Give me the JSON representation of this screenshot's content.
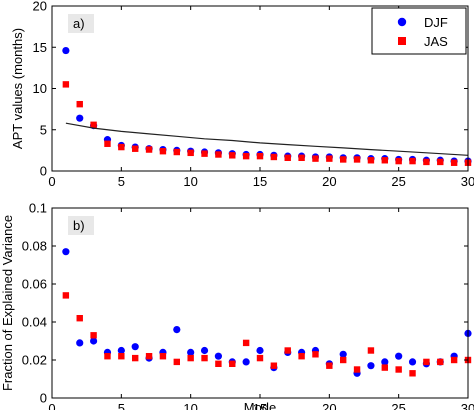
{
  "chart_data": [
    {
      "type": "scatter",
      "panel_label": "a)",
      "ylabel": "APT values (months)",
      "xlabel": "",
      "xlim": [
        0,
        30
      ],
      "ylim": [
        0,
        20
      ],
      "xticks": [
        "0",
        "5",
        "10",
        "15",
        "20",
        "25",
        "30"
      ],
      "yticks": [
        "0",
        "5",
        "10",
        "15",
        "20"
      ],
      "legend": {
        "placement": "top-right",
        "entries": [
          "DJF",
          "JAS"
        ]
      },
      "series": [
        {
          "name": "DJF",
          "marker": "circle",
          "color": "#0000ff",
          "x": [
            1,
            2,
            3,
            4,
            5,
            6,
            7,
            8,
            9,
            10,
            11,
            12,
            13,
            14,
            15,
            16,
            17,
            18,
            19,
            20,
            21,
            22,
            23,
            24,
            25,
            26,
            27,
            28,
            29,
            30
          ],
          "values": [
            14.6,
            6.4,
            5.5,
            3.8,
            3.1,
            2.9,
            2.7,
            2.6,
            2.5,
            2.4,
            2.3,
            2.2,
            2.1,
            2.0,
            2.0,
            1.9,
            1.8,
            1.8,
            1.7,
            1.7,
            1.6,
            1.6,
            1.5,
            1.5,
            1.4,
            1.4,
            1.3,
            1.3,
            1.2,
            1.2
          ]
        },
        {
          "name": "JAS",
          "marker": "square",
          "color": "#ff0000",
          "x": [
            1,
            2,
            3,
            4,
            5,
            6,
            7,
            8,
            9,
            10,
            11,
            12,
            13,
            14,
            15,
            16,
            17,
            18,
            19,
            20,
            21,
            22,
            23,
            24,
            25,
            26,
            27,
            28,
            29,
            30
          ],
          "values": [
            10.5,
            8.1,
            5.6,
            3.3,
            2.9,
            2.7,
            2.6,
            2.4,
            2.3,
            2.2,
            2.1,
            2.0,
            1.9,
            1.8,
            1.8,
            1.7,
            1.6,
            1.6,
            1.5,
            1.5,
            1.4,
            1.4,
            1.3,
            1.3,
            1.2,
            1.2,
            1.1,
            1.1,
            1.0,
            1.0
          ]
        },
        {
          "name": "",
          "marker": "line",
          "color": "#222222",
          "x": [
            1,
            3,
            5,
            7,
            9,
            11,
            13,
            15,
            17,
            19,
            21,
            23,
            25,
            27,
            30
          ],
          "values": [
            5.8,
            5.2,
            4.8,
            4.5,
            4.2,
            3.9,
            3.7,
            3.4,
            3.2,
            3.0,
            2.8,
            2.6,
            2.4,
            2.2,
            1.9
          ]
        }
      ]
    },
    {
      "type": "scatter",
      "panel_label": "b)",
      "ylabel": "Fraction of Explained Variance",
      "xlabel": "Mode",
      "xlim": [
        0,
        30
      ],
      "ylim": [
        0,
        0.1
      ],
      "xticks": [
        "0",
        "5",
        "10",
        "15",
        "20",
        "25",
        "30"
      ],
      "yticks": [
        "0",
        "0.02",
        "0.04",
        "0.06",
        "0.08",
        "0.1"
      ],
      "series": [
        {
          "name": "DJF",
          "marker": "circle",
          "color": "#0000ff",
          "x": [
            1,
            2,
            3,
            4,
            5,
            6,
            7,
            8,
            9,
            10,
            11,
            12,
            13,
            14,
            15,
            16,
            17,
            18,
            19,
            20,
            21,
            22,
            23,
            24,
            25,
            26,
            27,
            28,
            29,
            30
          ],
          "values": [
            0.077,
            0.029,
            0.03,
            0.024,
            0.025,
            0.027,
            0.021,
            0.024,
            0.036,
            0.024,
            0.025,
            0.022,
            0.019,
            0.019,
            0.025,
            0.016,
            0.024,
            0.024,
            0.025,
            0.018,
            0.023,
            0.013,
            0.017,
            0.019,
            0.022,
            0.019,
            0.018,
            0.019,
            0.022,
            0.034
          ]
        },
        {
          "name": "JAS",
          "marker": "square",
          "color": "#ff0000",
          "x": [
            1,
            2,
            3,
            4,
            5,
            6,
            7,
            8,
            9,
            10,
            11,
            12,
            13,
            14,
            15,
            16,
            17,
            18,
            19,
            20,
            21,
            22,
            23,
            24,
            25,
            26,
            27,
            28,
            29,
            30
          ],
          "values": [
            0.054,
            0.042,
            0.033,
            0.022,
            0.022,
            0.021,
            0.022,
            0.022,
            0.019,
            0.021,
            0.021,
            0.018,
            0.018,
            0.029,
            0.021,
            0.017,
            0.025,
            0.022,
            0.023,
            0.017,
            0.02,
            0.015,
            0.025,
            0.016,
            0.015,
            0.013,
            0.019,
            0.019,
            0.02,
            0.02
          ]
        }
      ]
    }
  ]
}
